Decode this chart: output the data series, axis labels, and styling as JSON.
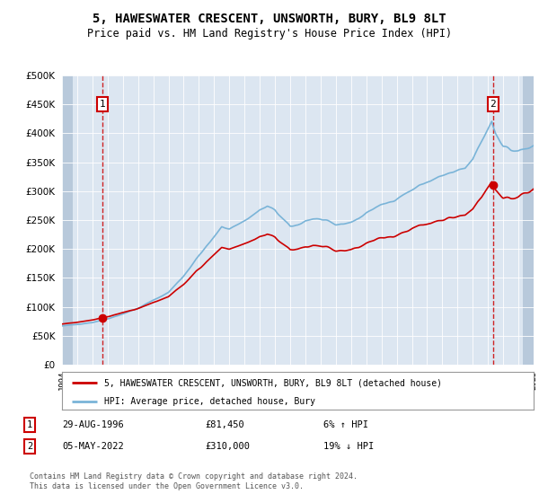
{
  "title": "5, HAWESWATER CRESCENT, UNSWORTH, BURY, BL9 8LT",
  "subtitle": "Price paid vs. HM Land Registry's House Price Index (HPI)",
  "legend_label_red": "5, HAWESWATER CRESCENT, UNSWORTH, BURY, BL9 8LT (detached house)",
  "legend_label_blue": "HPI: Average price, detached house, Bury",
  "annotation1_date": "29-AUG-1996",
  "annotation1_price": "£81,450",
  "annotation1_hpi": "6% ↑ HPI",
  "annotation2_date": "05-MAY-2022",
  "annotation2_price": "£310,000",
  "annotation2_hpi": "19% ↓ HPI",
  "footnote": "Contains HM Land Registry data © Crown copyright and database right 2024.\nThis data is licensed under the Open Government Licence v3.0.",
  "xmin": 1994.0,
  "xmax": 2025.0,
  "ymin": 0,
  "ymax": 500000,
  "yticks": [
    0,
    50000,
    100000,
    150000,
    200000,
    250000,
    300000,
    350000,
    400000,
    450000,
    500000
  ],
  "ytick_labels": [
    "£0",
    "£50K",
    "£100K",
    "£150K",
    "£200K",
    "£250K",
    "£300K",
    "£350K",
    "£400K",
    "£450K",
    "£500K"
  ],
  "background_color": "#dce6f1",
  "hatch_color": "#b8c9db",
  "grid_color": "#ffffff",
  "sale1_x": 1996.667,
  "sale1_y": 81450,
  "sale2_x": 2022.333,
  "sale2_y": 310000,
  "red_color": "#cc0000",
  "blue_color": "#7ab4d8"
}
